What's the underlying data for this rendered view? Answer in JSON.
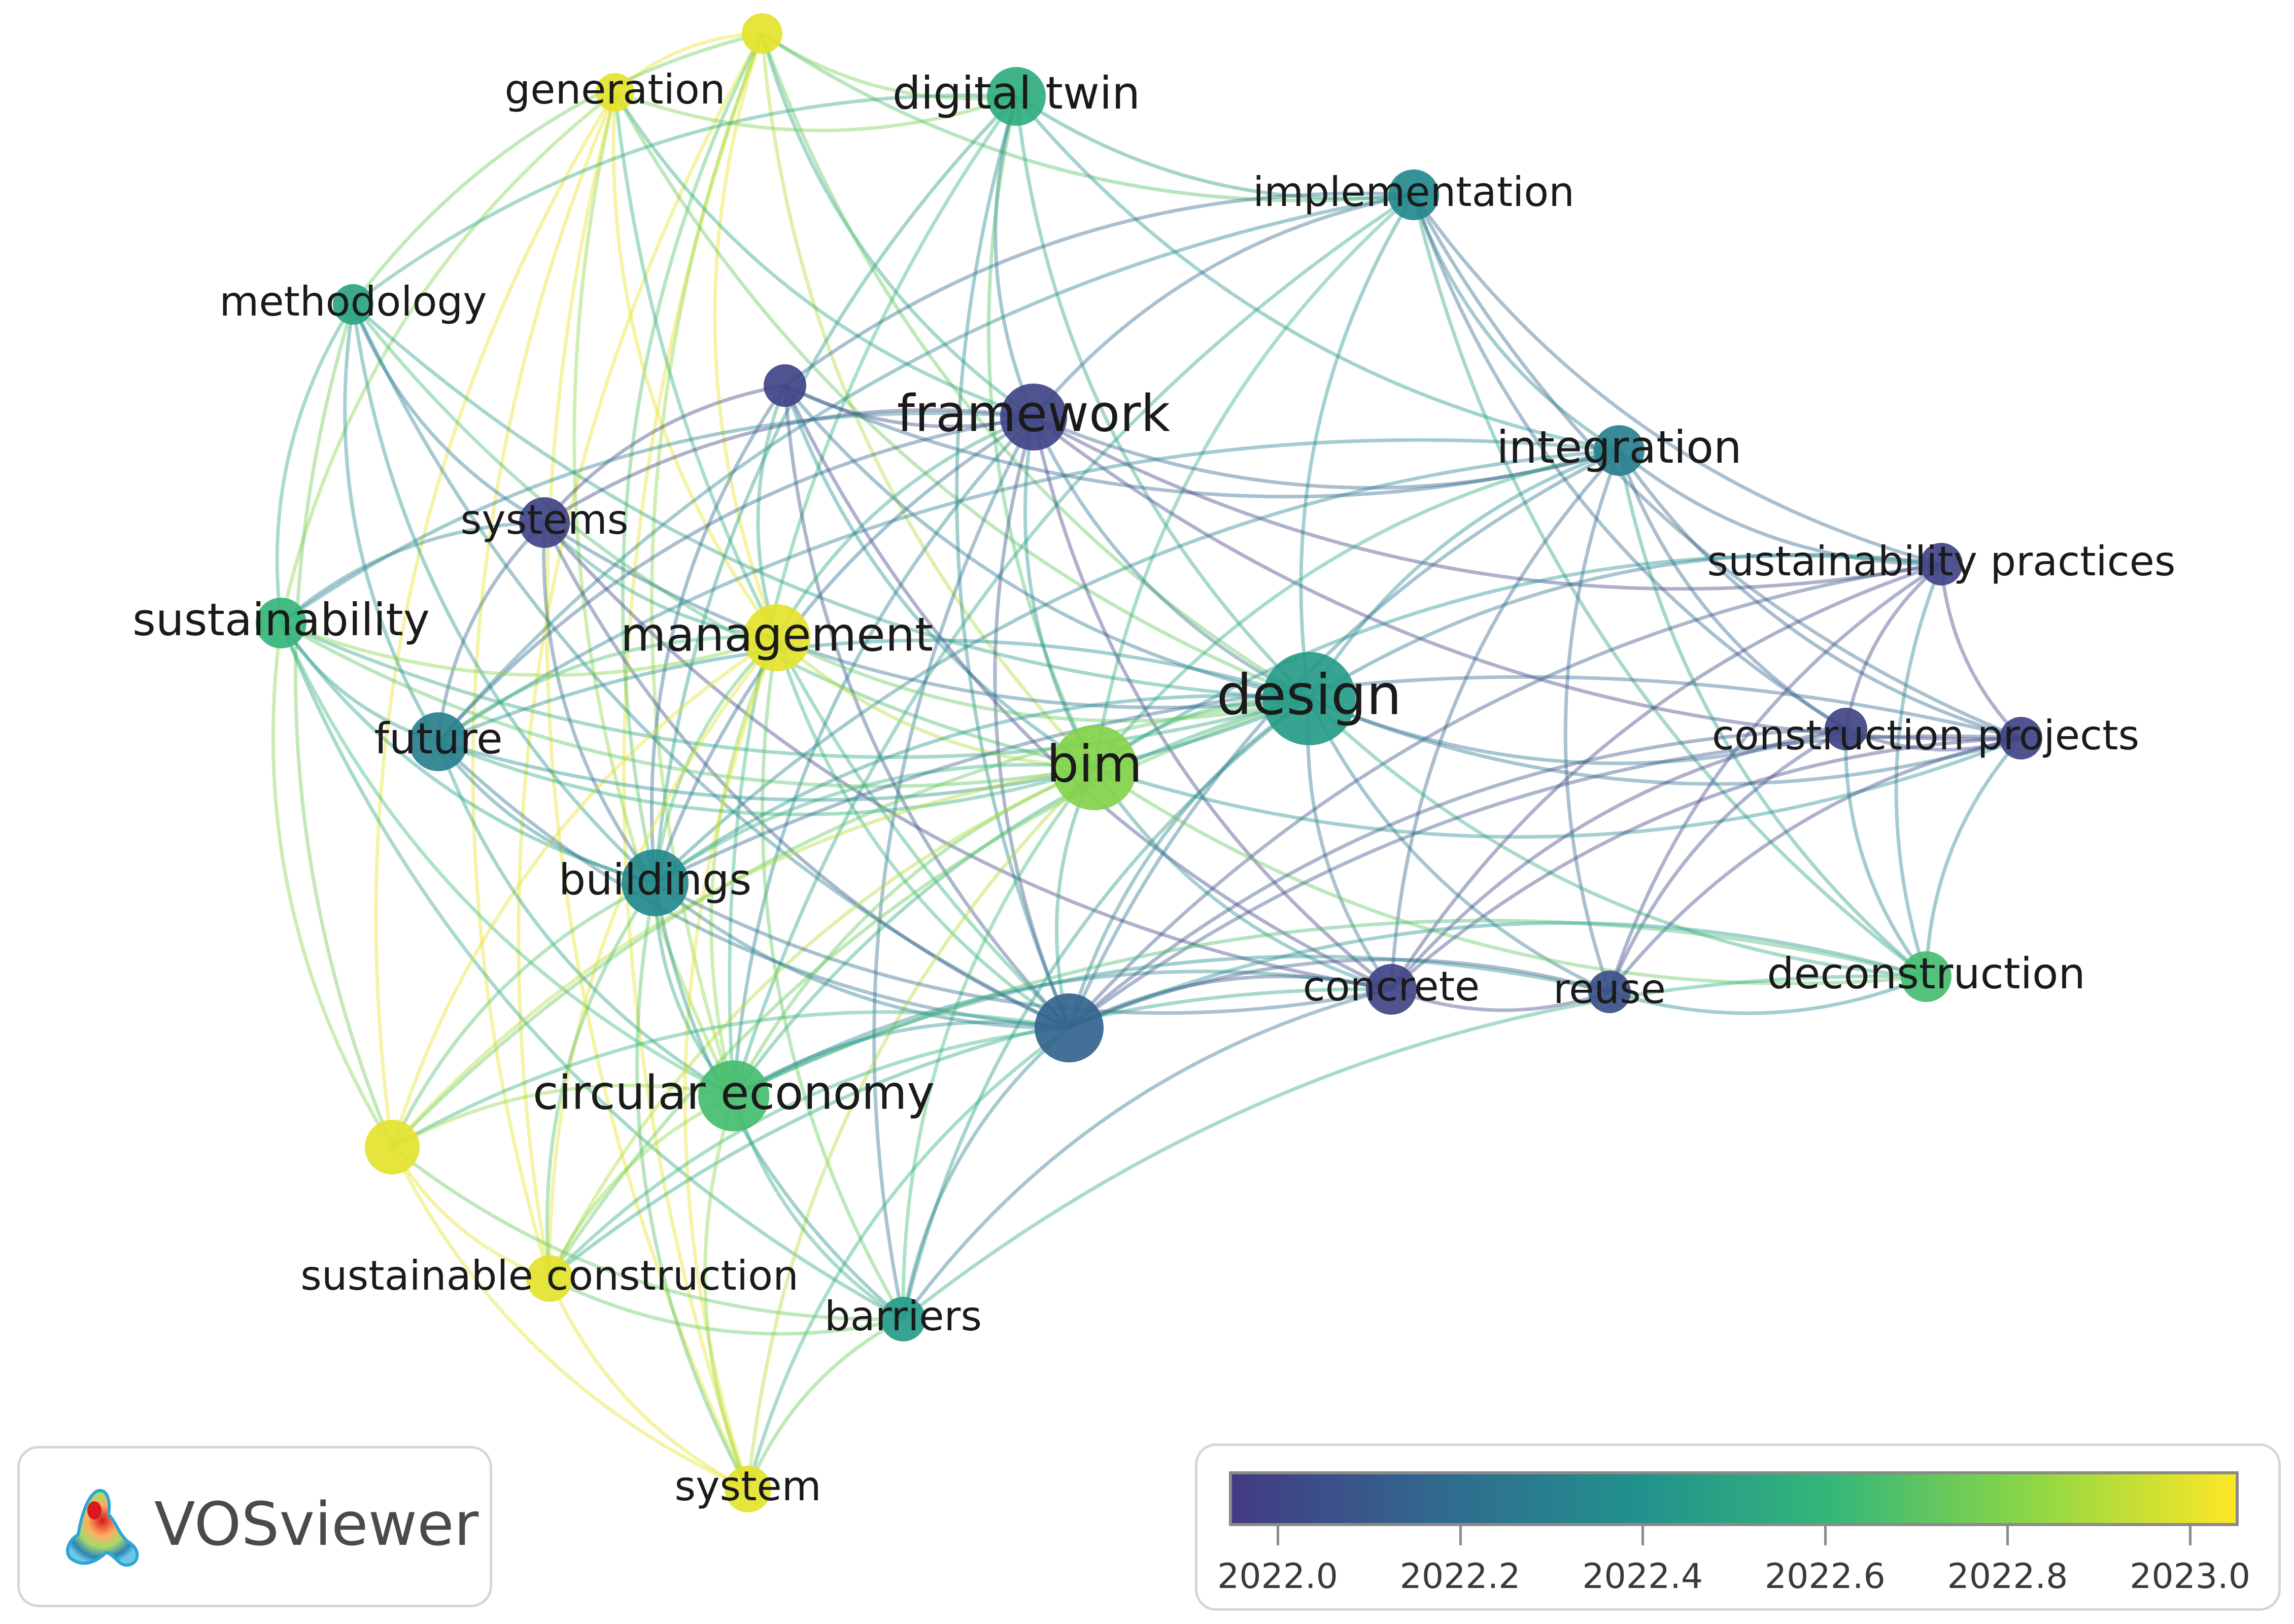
{
  "colorscale": {
    "min": 2021.95,
    "max": 2023.05,
    "stops": [
      "#443a83",
      "#31688e",
      "#21908d",
      "#35b779",
      "#8fd744",
      "#fde725"
    ]
  },
  "nodes": [
    {
      "id": "top",
      "label": "",
      "year": 2023.0
    },
    {
      "id": "generation",
      "label": "generation",
      "year": 2023.0
    },
    {
      "id": "digital_twin",
      "label": "digital twin",
      "year": 2022.55
    },
    {
      "id": "implementation",
      "label": "implementation",
      "year": 2022.35
    },
    {
      "id": "methodology",
      "label": "methodology",
      "year": 2022.5
    },
    {
      "id": "u1",
      "label": "",
      "year": 2022.0
    },
    {
      "id": "framework",
      "label": "framework",
      "year": 2022.0
    },
    {
      "id": "integration",
      "label": "integration",
      "year": 2022.3
    },
    {
      "id": "systems",
      "label": "systems",
      "year": 2022.0
    },
    {
      "id": "sust_practices",
      "label": "sustainability practices",
      "year": 2022.0
    },
    {
      "id": "sustainability",
      "label": "sustainability",
      "year": 2022.6
    },
    {
      "id": "management",
      "label": "management",
      "year": 2023.0
    },
    {
      "id": "design",
      "label": "design",
      "year": 2022.45
    },
    {
      "id": "future",
      "label": "future",
      "year": 2022.3
    },
    {
      "id": "bim",
      "label": "bim",
      "year": 2022.8
    },
    {
      "id": "c_proj1",
      "label": "",
      "year": 2022.0
    },
    {
      "id": "c_proj2",
      "label": "construction projects",
      "year": 2022.0
    },
    {
      "id": "buildings",
      "label": "buildings",
      "year": 2022.35
    },
    {
      "id": "concrete",
      "label": "concrete",
      "year": 2022.0
    },
    {
      "id": "reuse",
      "label": "reuse",
      "year": 2022.05
    },
    {
      "id": "deconstruction",
      "label": "deconstruction",
      "year": 2022.65
    },
    {
      "id": "u2",
      "label": "",
      "year": 2022.15
    },
    {
      "id": "circular",
      "label": "circular economy",
      "year": 2022.65
    },
    {
      "id": "u3",
      "label": "",
      "year": 2023.0
    },
    {
      "id": "sust_constr",
      "label": "sustainable construction",
      "year": 2023.0
    },
    {
      "id": "barriers",
      "label": "barriers",
      "year": 2022.45
    },
    {
      "id": "system",
      "label": "system",
      "year": 2023.0
    }
  ],
  "links": [
    [
      "top",
      "generation"
    ],
    [
      "top",
      "digital_twin"
    ],
    [
      "top",
      "implementation"
    ],
    [
      "top",
      "framework"
    ],
    [
      "top",
      "management"
    ],
    [
      "top",
      "bim"
    ],
    [
      "top",
      "design"
    ],
    [
      "top",
      "sust_constr"
    ],
    [
      "top",
      "system"
    ],
    [
      "top",
      "circular"
    ],
    [
      "top",
      "buildings"
    ],
    [
      "top",
      "methodology"
    ],
    [
      "generation",
      "framework"
    ],
    [
      "generation",
      "management"
    ],
    [
      "generation",
      "design"
    ],
    [
      "generation",
      "sust_constr"
    ],
    [
      "generation",
      "circular"
    ],
    [
      "generation",
      "u3"
    ],
    [
      "generation",
      "u2"
    ],
    [
      "generation",
      "digital_twin"
    ],
    [
      "generation",
      "sustainability"
    ],
    [
      "generation",
      "system"
    ],
    [
      "digital_twin",
      "framework"
    ],
    [
      "digital_twin",
      "implementation"
    ],
    [
      "digital_twin",
      "design"
    ],
    [
      "digital_twin",
      "bim"
    ],
    [
      "digital_twin",
      "methodology"
    ],
    [
      "digital_twin",
      "u2"
    ],
    [
      "digital_twin",
      "integration"
    ],
    [
      "digital_twin",
      "circular"
    ],
    [
      "digital_twin",
      "buildings"
    ],
    [
      "implementation",
      "framework"
    ],
    [
      "implementation",
      "integration"
    ],
    [
      "implementation",
      "design"
    ],
    [
      "implementation",
      "c_proj1"
    ],
    [
      "implementation",
      "c_proj2"
    ],
    [
      "implementation",
      "u1"
    ],
    [
      "implementation",
      "bim"
    ],
    [
      "implementation",
      "sust_practices"
    ],
    [
      "implementation",
      "deconstruction"
    ],
    [
      "implementation",
      "future"
    ],
    [
      "implementation",
      "circular"
    ],
    [
      "methodology",
      "systems"
    ],
    [
      "methodology",
      "future"
    ],
    [
      "methodology",
      "bim"
    ],
    [
      "methodology",
      "sustainability"
    ],
    [
      "methodology",
      "design"
    ],
    [
      "methodology",
      "buildings"
    ],
    [
      "methodology",
      "u2"
    ],
    [
      "methodology",
      "u3"
    ],
    [
      "u1",
      "framework"
    ],
    [
      "u1",
      "systems"
    ],
    [
      "u1",
      "management"
    ],
    [
      "u1",
      "integration"
    ],
    [
      "u1",
      "design"
    ],
    [
      "u1",
      "bim"
    ],
    [
      "u1",
      "buildings"
    ],
    [
      "u1",
      "concrete"
    ],
    [
      "u1",
      "u2"
    ],
    [
      "framework",
      "integration"
    ],
    [
      "framework",
      "design"
    ],
    [
      "framework",
      "bim"
    ],
    [
      "framework",
      "management"
    ],
    [
      "framework",
      "systems"
    ],
    [
      "framework",
      "buildings"
    ],
    [
      "framework",
      "concrete"
    ],
    [
      "framework",
      "u2"
    ],
    [
      "framework",
      "sust_practices"
    ],
    [
      "framework",
      "c_proj2"
    ],
    [
      "framework",
      "future"
    ],
    [
      "framework",
      "circular"
    ],
    [
      "framework",
      "sustainability"
    ],
    [
      "framework",
      "barriers"
    ],
    [
      "integration",
      "design"
    ],
    [
      "integration",
      "bim"
    ],
    [
      "integration",
      "c_proj1"
    ],
    [
      "integration",
      "c_proj2"
    ],
    [
      "integration",
      "sust_practices"
    ],
    [
      "integration",
      "concrete"
    ],
    [
      "integration",
      "reuse"
    ],
    [
      "integration",
      "u2"
    ],
    [
      "integration",
      "future"
    ],
    [
      "integration",
      "deconstruction"
    ],
    [
      "integration",
      "buildings"
    ],
    [
      "systems",
      "sustainability"
    ],
    [
      "systems",
      "management"
    ],
    [
      "systems",
      "future"
    ],
    [
      "systems",
      "buildings"
    ],
    [
      "systems",
      "u2"
    ],
    [
      "systems",
      "concrete"
    ],
    [
      "systems",
      "design"
    ],
    [
      "sust_practices",
      "c_proj1"
    ],
    [
      "sust_practices",
      "c_proj2"
    ],
    [
      "sust_practices",
      "design"
    ],
    [
      "sust_practices",
      "concrete"
    ],
    [
      "sust_practices",
      "reuse"
    ],
    [
      "sust_practices",
      "u2"
    ],
    [
      "sust_practices",
      "deconstruction"
    ],
    [
      "sust_practices",
      "bim"
    ],
    [
      "sustainability",
      "future"
    ],
    [
      "sustainability",
      "buildings"
    ],
    [
      "sustainability",
      "circular"
    ],
    [
      "sustainability",
      "u3"
    ],
    [
      "sustainability",
      "design"
    ],
    [
      "sustainability",
      "bim"
    ],
    [
      "sustainability",
      "management"
    ],
    [
      "sustainability",
      "barriers"
    ],
    [
      "management",
      "bim"
    ],
    [
      "management",
      "design"
    ],
    [
      "management",
      "buildings"
    ],
    [
      "management",
      "circular"
    ],
    [
      "management",
      "sust_constr"
    ],
    [
      "management",
      "u3"
    ],
    [
      "management",
      "future"
    ],
    [
      "management",
      "system"
    ],
    [
      "management",
      "u2"
    ],
    [
      "management",
      "barriers"
    ],
    [
      "design",
      "bim"
    ],
    [
      "design",
      "u2"
    ],
    [
      "design",
      "concrete"
    ],
    [
      "design",
      "reuse"
    ],
    [
      "design",
      "deconstruction"
    ],
    [
      "design",
      "c_proj1"
    ],
    [
      "design",
      "c_proj2"
    ],
    [
      "design",
      "buildings"
    ],
    [
      "design",
      "circular"
    ],
    [
      "design",
      "future"
    ],
    [
      "design",
      "barriers"
    ],
    [
      "design",
      "sust_constr"
    ],
    [
      "design",
      "u3"
    ],
    [
      "future",
      "buildings"
    ],
    [
      "future",
      "bim"
    ],
    [
      "future",
      "u2"
    ],
    [
      "future",
      "circular"
    ],
    [
      "future",
      "design"
    ],
    [
      "bim",
      "u2"
    ],
    [
      "bim",
      "buildings"
    ],
    [
      "bim",
      "circular"
    ],
    [
      "bim",
      "concrete"
    ],
    [
      "bim",
      "sust_constr"
    ],
    [
      "bim",
      "u3"
    ],
    [
      "bim",
      "c_proj2"
    ],
    [
      "bim",
      "deconstruction"
    ],
    [
      "bim",
      "barriers"
    ],
    [
      "bim",
      "system"
    ],
    [
      "c_proj1",
      "c_proj2"
    ],
    [
      "c_proj1",
      "concrete"
    ],
    [
      "c_proj1",
      "reuse"
    ],
    [
      "c_proj1",
      "u2"
    ],
    [
      "c_proj1",
      "deconstruction"
    ],
    [
      "c_proj2",
      "concrete"
    ],
    [
      "c_proj2",
      "reuse"
    ],
    [
      "c_proj2",
      "u2"
    ],
    [
      "c_proj2",
      "deconstruction"
    ],
    [
      "c_proj2",
      "buildings"
    ],
    [
      "buildings",
      "circular"
    ],
    [
      "buildings",
      "u2"
    ],
    [
      "buildings",
      "sust_constr"
    ],
    [
      "buildings",
      "u3"
    ],
    [
      "buildings",
      "barriers"
    ],
    [
      "buildings",
      "concrete"
    ],
    [
      "buildings",
      "system"
    ],
    [
      "concrete",
      "reuse"
    ],
    [
      "concrete",
      "u2"
    ],
    [
      "concrete",
      "circular"
    ],
    [
      "concrete",
      "barriers"
    ],
    [
      "concrete",
      "sust_constr"
    ],
    [
      "reuse",
      "u2"
    ],
    [
      "reuse",
      "circular"
    ],
    [
      "reuse",
      "deconstruction"
    ],
    [
      "deconstruction",
      "u2"
    ],
    [
      "deconstruction",
      "circular"
    ],
    [
      "deconstruction",
      "barriers"
    ],
    [
      "u2",
      "circular"
    ],
    [
      "u2",
      "sust_constr"
    ],
    [
      "u2",
      "barriers"
    ],
    [
      "u2",
      "u3"
    ],
    [
      "u2",
      "system"
    ],
    [
      "circular",
      "u3"
    ],
    [
      "circular",
      "sust_constr"
    ],
    [
      "circular",
      "barriers"
    ],
    [
      "circular",
      "system"
    ],
    [
      "u3",
      "sust_constr"
    ],
    [
      "u3",
      "system"
    ],
    [
      "u3",
      "barriers"
    ],
    [
      "sust_constr",
      "system"
    ],
    [
      "sust_constr",
      "barriers"
    ],
    [
      "barriers",
      "system"
    ]
  ],
  "brand": {
    "name": "VOSviewer"
  },
  "legend": {
    "ticks": [
      "2022.0",
      "2022.2",
      "2022.4",
      "2022.6",
      "2022.8",
      "2023.0"
    ],
    "tick_values": [
      2022.0,
      2022.2,
      2022.4,
      2022.6,
      2022.8,
      2023.0
    ]
  }
}
